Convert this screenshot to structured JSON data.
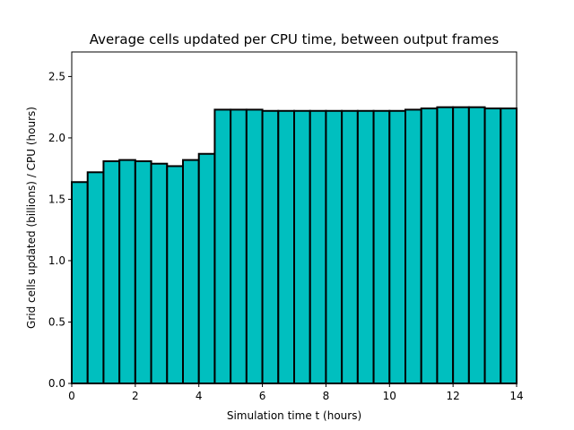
{
  "chart_data": {
    "type": "bar",
    "title": "Average cells updated per CPU time, between output frames",
    "xlabel": "Simulation time t (hours)",
    "ylabel": "Grid cells updated (billions) / CPU (hours)",
    "xlim": [
      0,
      14
    ],
    "ylim": [
      0,
      2.7
    ],
    "xticks": [
      "0",
      "2",
      "4",
      "6",
      "8",
      "10",
      "12",
      "14"
    ],
    "yticks": [
      "0.0",
      "0.5",
      "1.0",
      "1.5",
      "2.0",
      "2.5"
    ],
    "grid": false,
    "bar_color": "#00bfbf",
    "bar_edge_color": "#000000",
    "bins": [
      {
        "x0": 0.0,
        "x1": 0.5,
        "value": 1.64
      },
      {
        "x0": 0.5,
        "x1": 1.0,
        "value": 1.72
      },
      {
        "x0": 1.0,
        "x1": 1.5,
        "value": 1.81
      },
      {
        "x0": 1.5,
        "x1": 2.0,
        "value": 1.82
      },
      {
        "x0": 2.0,
        "x1": 2.5,
        "value": 1.81
      },
      {
        "x0": 2.5,
        "x1": 3.0,
        "value": 1.79
      },
      {
        "x0": 3.0,
        "x1": 3.5,
        "value": 1.77
      },
      {
        "x0": 3.5,
        "x1": 4.0,
        "value": 1.82
      },
      {
        "x0": 4.0,
        "x1": 4.5,
        "value": 1.87
      },
      {
        "x0": 4.5,
        "x1": 5.0,
        "value": 2.23
      },
      {
        "x0": 5.0,
        "x1": 5.5,
        "value": 2.23
      },
      {
        "x0": 5.5,
        "x1": 6.0,
        "value": 2.23
      },
      {
        "x0": 6.0,
        "x1": 6.5,
        "value": 2.22
      },
      {
        "x0": 6.5,
        "x1": 7.0,
        "value": 2.22
      },
      {
        "x0": 7.0,
        "x1": 7.5,
        "value": 2.22
      },
      {
        "x0": 7.5,
        "x1": 8.0,
        "value": 2.22
      },
      {
        "x0": 8.0,
        "x1": 8.5,
        "value": 2.22
      },
      {
        "x0": 8.5,
        "x1": 9.0,
        "value": 2.22
      },
      {
        "x0": 9.0,
        "x1": 9.5,
        "value": 2.22
      },
      {
        "x0": 9.5,
        "x1": 10.0,
        "value": 2.22
      },
      {
        "x0": 10.0,
        "x1": 10.5,
        "value": 2.22
      },
      {
        "x0": 10.5,
        "x1": 11.0,
        "value": 2.23
      },
      {
        "x0": 11.0,
        "x1": 11.5,
        "value": 2.24
      },
      {
        "x0": 11.5,
        "x1": 12.0,
        "value": 2.25
      },
      {
        "x0": 12.0,
        "x1": 12.5,
        "value": 2.25
      },
      {
        "x0": 12.5,
        "x1": 13.0,
        "value": 2.25
      },
      {
        "x0": 13.0,
        "x1": 13.5,
        "value": 2.24
      },
      {
        "x0": 13.5,
        "x1": 14.0,
        "value": 2.24
      }
    ]
  }
}
